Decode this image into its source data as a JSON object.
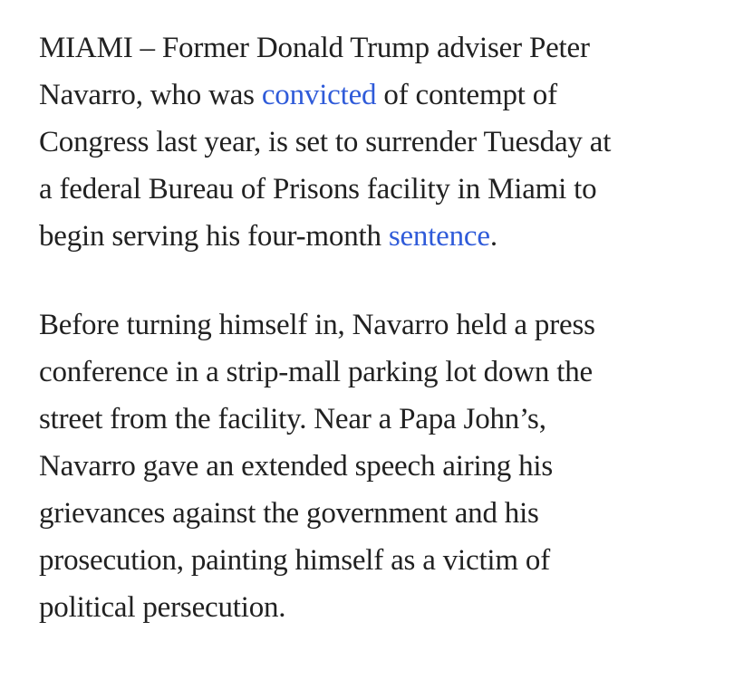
{
  "page": {
    "background_color": "#ffffff"
  },
  "article": {
    "text_color": "#212121",
    "link_color": "#2f5bd9",
    "links": [
      "convicted",
      "sentence"
    ],
    "paragraphs": [
      {
        "lines": [
          [
            {
              "t": "MIAMI – Former Donald Trump adviser Peter"
            }
          ],
          [
            {
              "t": "Navarro, who was "
            },
            {
              "t": "convicted",
              "link": true
            },
            {
              "t": " of contempt of"
            }
          ],
          [
            {
              "t": "Congress last year, is set to surrender Tuesday at"
            }
          ],
          [
            {
              "t": "a federal Bureau of Prisons facility in Miami to"
            }
          ],
          [
            {
              "t": "begin serving his four-month "
            },
            {
              "t": "sentence",
              "link": true
            },
            {
              "t": "."
            }
          ]
        ]
      },
      {
        "lines": [
          [
            {
              "t": "Before turning himself in, Navarro held a press"
            }
          ],
          [
            {
              "t": "conference in a strip-mall parking lot down the"
            }
          ],
          [
            {
              "t": "street from the facility. Near a Papa John’s,"
            }
          ],
          [
            {
              "t": "Navarro gave an extended speech airing his"
            }
          ],
          [
            {
              "t": "grievances against the government and his"
            }
          ],
          [
            {
              "t": "prosecution, painting himself as a victim of"
            }
          ],
          [
            {
              "t": "political persecution."
            }
          ]
        ]
      }
    ]
  }
}
